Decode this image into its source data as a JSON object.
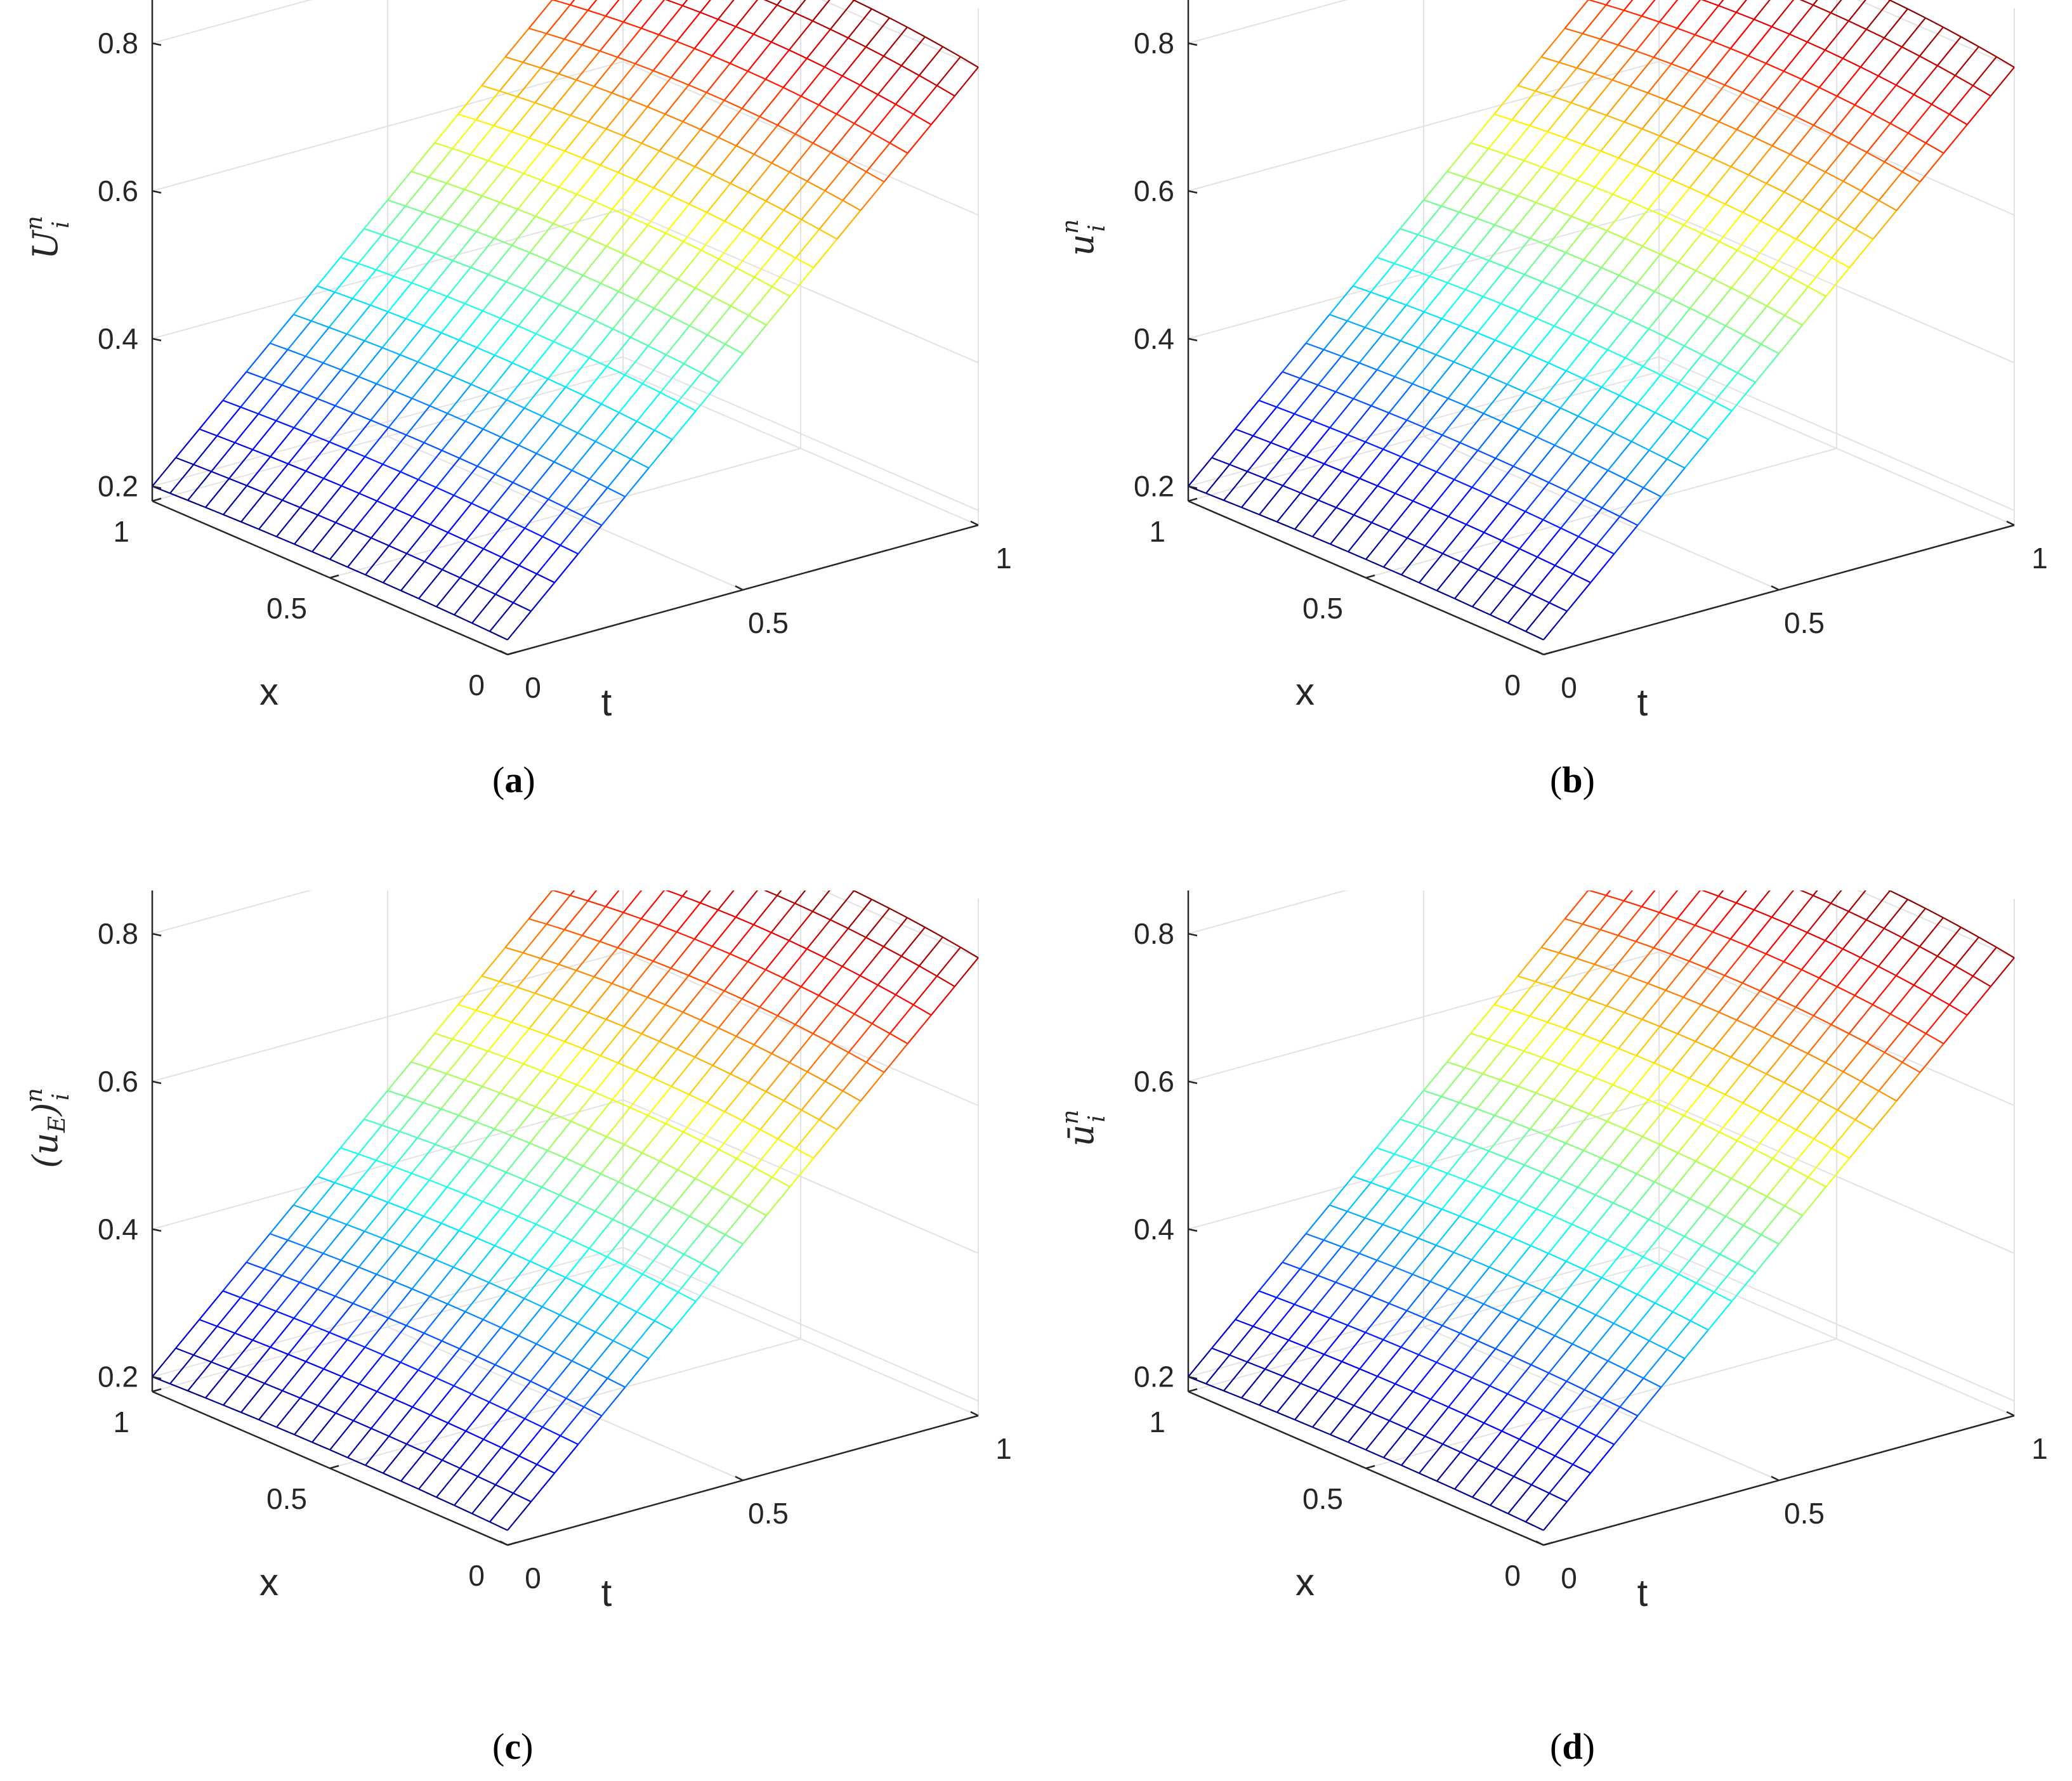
{
  "chart_data": [
    {
      "type": "surface",
      "caption_letter": "a",
      "zlabel": {
        "base": "U",
        "sup": "n",
        "sub": "i"
      },
      "xlabel": "x",
      "tlabel": "t",
      "x_ticks": [
        "0",
        "0.5",
        "1"
      ],
      "t_ticks": [
        "0",
        "0.5",
        "1"
      ],
      "z_ticks": [
        "0.2",
        "0.4",
        "0.6",
        "0.8"
      ],
      "xlim": [
        0,
        1
      ],
      "tlim": [
        0,
        1
      ],
      "zlim": [
        0.18,
        0.88
      ],
      "colormap": "jet",
      "grid": true,
      "surface": "u(x,t) = (0.2 + 0.6 t)(1 + 0.1 x(1 - x))",
      "corners": {
        "x0_t0": 0.2,
        "x1_t0": 0.2,
        "x0_t1": 0.8,
        "x1_t1": 0.8
      },
      "mesh": {
        "nx": 21,
        "nt": 21
      }
    },
    {
      "type": "surface",
      "caption_letter": "b",
      "zlabel": {
        "base": "u",
        "sup": "n",
        "sub": "i"
      },
      "xlabel": "x",
      "tlabel": "t",
      "x_ticks": [
        "0",
        "0.5",
        "1"
      ],
      "t_ticks": [
        "0",
        "0.5",
        "1"
      ],
      "z_ticks": [
        "0.2",
        "0.4",
        "0.6",
        "0.8"
      ],
      "xlim": [
        0,
        1
      ],
      "tlim": [
        0,
        1
      ],
      "zlim": [
        0.18,
        0.88
      ],
      "colormap": "jet",
      "grid": true,
      "surface": "u(x,t) = (0.2 + 0.6 t)(1 + 0.1 x(1 - x))",
      "corners": {
        "x0_t0": 0.2,
        "x1_t0": 0.2,
        "x0_t1": 0.8,
        "x1_t1": 0.8
      },
      "mesh": {
        "nx": 21,
        "nt": 21
      }
    },
    {
      "type": "surface",
      "caption_letter": "c",
      "zlabel": {
        "base": "(u",
        "sub_inner": "E",
        "close": ")",
        "sup": "n",
        "sub": "i"
      },
      "xlabel": "x",
      "tlabel": "t",
      "x_ticks": [
        "0",
        "0.5",
        "1"
      ],
      "t_ticks": [
        "0",
        "0.5",
        "1"
      ],
      "z_ticks": [
        "0.2",
        "0.4",
        "0.6",
        "0.8"
      ],
      "xlim": [
        0,
        1
      ],
      "tlim": [
        0,
        1
      ],
      "zlim": [
        0.18,
        0.88
      ],
      "colormap": "jet",
      "grid": true,
      "surface": "u(x,t) = (0.2 + 0.6 t)(1 + 0.1 x(1 - x))",
      "corners": {
        "x0_t0": 0.2,
        "x1_t0": 0.2,
        "x0_t1": 0.8,
        "x1_t1": 0.8
      },
      "mesh": {
        "nx": 21,
        "nt": 21
      }
    },
    {
      "type": "surface",
      "caption_letter": "d",
      "zlabel": {
        "base": "ū",
        "sup": "n",
        "sub": "i"
      },
      "xlabel": "x",
      "tlabel": "t",
      "x_ticks": [
        "0",
        "0.5",
        "1"
      ],
      "t_ticks": [
        "0",
        "0.5",
        "1"
      ],
      "z_ticks": [
        "0.2",
        "0.4",
        "0.6",
        "0.8"
      ],
      "xlim": [
        0,
        1
      ],
      "tlim": [
        0,
        1
      ],
      "zlim": [
        0.18,
        0.88
      ],
      "colormap": "jet",
      "grid": true,
      "surface": "u(x,t) = (0.2 + 0.6 t)(1 + 0.1 x(1 - x))",
      "corners": {
        "x0_t0": 0.2,
        "x1_t0": 0.2,
        "x0_t1": 0.8,
        "x1_t1": 0.8
      },
      "mesh": {
        "nx": 21,
        "nt": 21
      }
    }
  ]
}
